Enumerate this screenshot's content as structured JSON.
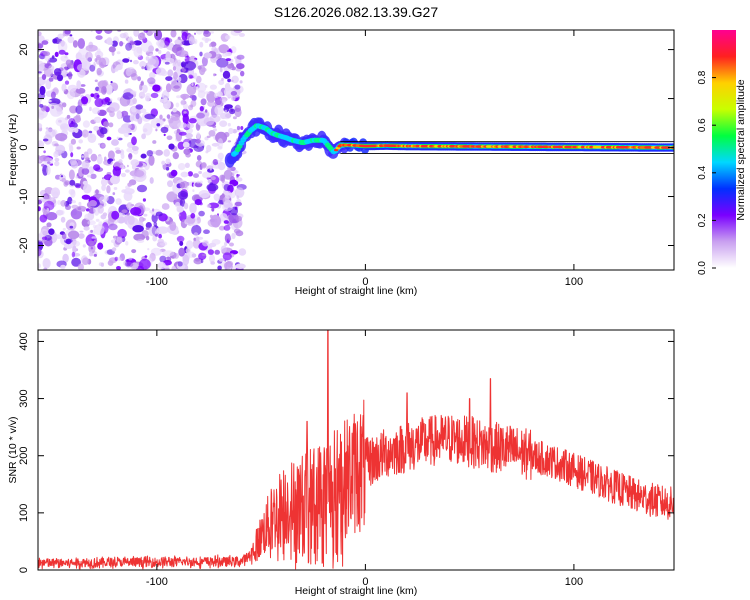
{
  "figure": {
    "title": "S126.2026.082.13.39.G27"
  },
  "chart_data": [
    {
      "type": "heatmap",
      "xlabel": "Height of straight line (km)",
      "ylabel": "Frequency (Hz)",
      "xlim": [
        -157,
        148
      ],
      "ylim": [
        -25,
        24
      ],
      "xticks": [
        -100,
        0,
        100
      ],
      "yticks": [
        -20,
        -10,
        0,
        10,
        20
      ],
      "colorbar": {
        "label": "Normalized spectral amplitude",
        "range": [
          0,
          1
        ],
        "ticks": [
          0.0,
          0.2,
          0.4,
          0.6,
          0.8
        ],
        "colormap": [
          "#ffffff",
          "#c9a0f0",
          "#7a00ff",
          "#0030ff",
          "#00d8ff",
          "#00ff40",
          "#c8ff00",
          "#ffd000",
          "#ff2020",
          "#ff0090"
        ]
      },
      "noise_region": {
        "x": [
          -157,
          -65
        ],
        "frequency": [
          -25,
          24
        ]
      },
      "line_trace": [
        {
          "x": -65,
          "f": -2
        },
        {
          "x": -62,
          "f": -1
        },
        {
          "x": -58,
          "f": 2
        },
        {
          "x": -55,
          "f": 3.5
        },
        {
          "x": -52,
          "f": 4.5
        },
        {
          "x": -48,
          "f": 4
        },
        {
          "x": -45,
          "f": 3
        },
        {
          "x": -42,
          "f": 2.5
        },
        {
          "x": -38,
          "f": 2
        },
        {
          "x": -35,
          "f": 1.5
        },
        {
          "x": -30,
          "f": 1
        },
        {
          "x": -25,
          "f": 1.5
        },
        {
          "x": -20,
          "f": 1.5
        },
        {
          "x": -15,
          "f": -1
        },
        {
          "x": -12,
          "f": 0.5
        },
        {
          "x": -8,
          "f": 0.5
        },
        {
          "x": 0,
          "f": 0.3
        },
        {
          "x": 10,
          "f": 0.4
        },
        {
          "x": 20,
          "f": 0.3
        },
        {
          "x": 148,
          "f": 0
        }
      ]
    },
    {
      "type": "line",
      "xlabel": "Height of straight line (km)",
      "ylabel": "SNR (10 * v/v)",
      "xlim": [
        -157,
        148
      ],
      "ylim": [
        0,
        420
      ],
      "xticks": [
        -100,
        0,
        100
      ],
      "yticks": [
        0,
        100,
        200,
        300,
        400
      ],
      "color": "#ee3333",
      "envelope": [
        {
          "x": -157,
          "y": 12
        },
        {
          "x": -60,
          "y": 15
        },
        {
          "x": -55,
          "y": 25
        },
        {
          "x": -50,
          "y": 60
        },
        {
          "x": -45,
          "y": 90
        },
        {
          "x": -40,
          "y": 110
        },
        {
          "x": -30,
          "y": 125
        },
        {
          "x": -20,
          "y": 140
        },
        {
          "x": -10,
          "y": 160
        },
        {
          "x": 0,
          "y": 185
        },
        {
          "x": 10,
          "y": 205
        },
        {
          "x": 20,
          "y": 215
        },
        {
          "x": 30,
          "y": 225
        },
        {
          "x": 40,
          "y": 230
        },
        {
          "x": 50,
          "y": 225
        },
        {
          "x": 60,
          "y": 215
        },
        {
          "x": 70,
          "y": 210
        },
        {
          "x": 80,
          "y": 200
        },
        {
          "x": 90,
          "y": 190
        },
        {
          "x": 100,
          "y": 175
        },
        {
          "x": 110,
          "y": 160
        },
        {
          "x": 120,
          "y": 145
        },
        {
          "x": 130,
          "y": 130
        },
        {
          "x": 140,
          "y": 120
        },
        {
          "x": 148,
          "y": 115
        }
      ],
      "peaks": [
        {
          "x": -18,
          "y": 420
        },
        {
          "x": -28,
          "y": 260
        },
        {
          "x": 60,
          "y": 335
        },
        {
          "x": 50,
          "y": 300
        },
        {
          "x": 20,
          "y": 310
        }
      ]
    }
  ]
}
